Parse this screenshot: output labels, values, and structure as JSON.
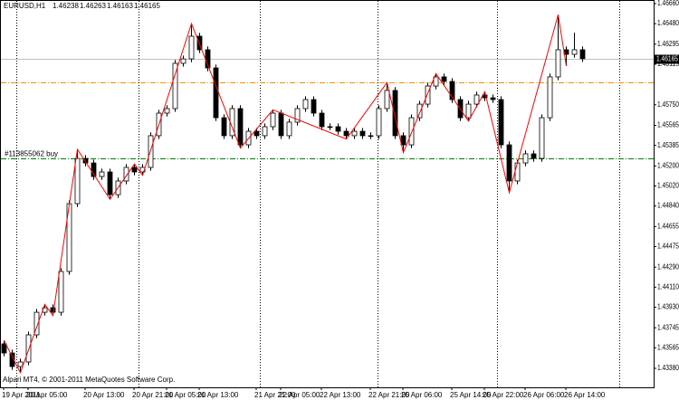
{
  "chart_data": {
    "type": "candlestick",
    "title": "EURUSD,H1",
    "header_values": [
      1.46238,
      1.46263,
      1.46163,
      1.46165
    ],
    "footer": "Alpari MT4, © 2001-2011 MetaQuotes Software Corp.",
    "categories": [
      "19 Apr 2011",
      null,
      null,
      "20 Apr 05:00",
      null,
      null,
      null,
      null,
      null,
      null,
      "20 Apr 13:00",
      null,
      null,
      null,
      null,
      null,
      "20 Apr 21:00",
      null,
      null,
      null,
      "21 Apr 05:00",
      null,
      null,
      null,
      "21 Apr 13:00",
      null,
      null,
      null,
      null,
      null,
      null,
      "21 Apr 21:00",
      null,
      null,
      "22 Apr 05:00",
      null,
      null,
      null,
      null,
      "22 Apr 13:00",
      null,
      null,
      null,
      null,
      null,
      "22 Apr 21:00",
      null,
      null,
      null,
      "25 Apr 06:00",
      null,
      null,
      null,
      null,
      null,
      "25 Apr 14:00",
      null,
      null,
      null,
      "25 Apr 22:00",
      null,
      null,
      null,
      null,
      "26 Apr 06:00",
      null,
      null,
      null,
      null,
      "26 Apr 14:00",
      null,
      null
    ],
    "open": [
      1.436,
      1.43518,
      1.43396,
      1.43437,
      1.43681,
      1.43884,
      1.43925,
      1.43884,
      1.44251,
      1.44861,
      1.45268,
      1.45227,
      1.45105,
      1.45146,
      1.44942,
      1.45065,
      1.45187,
      1.45146,
      1.45187,
      1.45472,
      1.45675,
      1.45716,
      1.46123,
      1.46163,
      1.46367,
      1.46245,
      1.46082,
      1.45634,
      1.45472,
      1.45716,
      1.4539,
      1.45512,
      1.45472,
      1.45553,
      1.45675,
      1.45472,
      1.45594,
      1.45716,
      1.45797,
      1.45675,
      1.45553,
      1.45553,
      1.45512,
      1.45472,
      1.45512,
      1.45472,
      1.45472,
      1.45716,
      1.45879,
      1.45472,
      1.4539,
      1.45634,
      1.45756,
      1.45919,
      1.46001,
      1.4596,
      1.45797,
      1.45634,
      1.45756,
      1.45838,
      1.45813,
      1.45797,
      1.4539,
      1.45065,
      1.45227,
      1.45309,
      1.45268,
      1.45634,
      1.46001,
      1.46245,
      1.46204,
      1.46245
    ],
    "high": [
      1.4363,
      1.43548,
      1.43467,
      1.43711,
      1.43914,
      1.43955,
      1.43955,
      1.44281,
      1.44891,
      1.4535,
      1.45298,
      1.45257,
      1.45176,
      1.45176,
      1.45095,
      1.45217,
      1.45217,
      1.45217,
      1.45502,
      1.45705,
      1.45746,
      1.46153,
      1.46193,
      1.4648,
      1.46397,
      1.46275,
      1.46112,
      1.45664,
      1.45746,
      1.45746,
      1.45542,
      1.45542,
      1.45583,
      1.45705,
      1.45705,
      1.45624,
      1.45746,
      1.45827,
      1.45827,
      1.45705,
      1.45583,
      1.45583,
      1.45542,
      1.45542,
      1.45542,
      1.45502,
      1.45746,
      1.4595,
      1.45909,
      1.45502,
      1.45664,
      1.45786,
      1.45949,
      1.46031,
      1.46031,
      1.4599,
      1.45827,
      1.45786,
      1.45868,
      1.45868,
      1.45843,
      1.45827,
      1.4542,
      1.45257,
      1.45339,
      1.45339,
      1.45664,
      1.46031,
      1.4656,
      1.46275,
      1.464,
      1.46275
    ],
    "low": [
      1.43488,
      1.43366,
      1.4334,
      1.43407,
      1.43651,
      1.43854,
      1.43854,
      1.43854,
      1.44221,
      1.44831,
      1.45197,
      1.45075,
      1.45075,
      1.449,
      1.44912,
      1.45035,
      1.45116,
      1.45116,
      1.45157,
      1.45442,
      1.45645,
      1.45686,
      1.46093,
      1.46133,
      1.46215,
      1.46052,
      1.45604,
      1.45442,
      1.45442,
      1.4536,
      1.4536,
      1.45442,
      1.45442,
      1.45523,
      1.45442,
      1.45442,
      1.45564,
      1.45686,
      1.45645,
      1.45523,
      1.45523,
      1.45482,
      1.45442,
      1.45442,
      1.45442,
      1.45442,
      1.45442,
      1.45686,
      1.45442,
      1.4532,
      1.4536,
      1.45604,
      1.45726,
      1.45889,
      1.4593,
      1.45767,
      1.45604,
      1.45604,
      1.45726,
      1.45783,
      1.45767,
      1.4536,
      1.4496,
      1.45035,
      1.45197,
      1.45238,
      1.45238,
      1.45604,
      1.45971,
      1.461,
      1.46174,
      1.46135
    ],
    "close": [
      1.43518,
      1.43396,
      1.43437,
      1.43681,
      1.43884,
      1.43925,
      1.43884,
      1.44251,
      1.44861,
      1.45268,
      1.45227,
      1.45105,
      1.45146,
      1.44942,
      1.45065,
      1.45187,
      1.45146,
      1.45187,
      1.45472,
      1.45675,
      1.45716,
      1.46123,
      1.46163,
      1.46367,
      1.46245,
      1.46082,
      1.45634,
      1.45472,
      1.45716,
      1.4539,
      1.45512,
      1.45472,
      1.45553,
      1.45675,
      1.45472,
      1.45594,
      1.45716,
      1.45797,
      1.45675,
      1.45553,
      1.45553,
      1.45512,
      1.45472,
      1.45512,
      1.45472,
      1.45472,
      1.45716,
      1.45879,
      1.45472,
      1.4539,
      1.45634,
      1.45756,
      1.45919,
      1.46001,
      1.4596,
      1.45797,
      1.45634,
      1.45756,
      1.45838,
      1.45813,
      1.45797,
      1.4539,
      1.45065,
      1.45227,
      1.45309,
      1.45268,
      1.45634,
      1.46001,
      1.46245,
      1.46204,
      1.46245,
      1.46165
    ],
    "zigzag": {
      "color": "#ff0000",
      "x": [
        0,
        2,
        5,
        6,
        9,
        13,
        16,
        17,
        23,
        29,
        33,
        42,
        47,
        49,
        53,
        57,
        59,
        62,
        68,
        69
      ],
      "values": [
        1.4363,
        1.4334,
        1.43955,
        1.43854,
        1.4535,
        1.449,
        1.45217,
        1.45116,
        1.4648,
        1.4536,
        1.45705,
        1.45442,
        1.4595,
        1.4532,
        1.46031,
        1.45604,
        1.45868,
        1.4496,
        1.4656,
        1.461
      ]
    },
    "price_line": {
      "value": 1.46165,
      "color": "#c0c0c0"
    },
    "levels": [
      {
        "label": "#113855062 buy",
        "value": 1.45268,
        "color": "#008000"
      },
      {
        "value": 1.45952,
        "color": "#ff8c00"
      }
    ],
    "ylim": [
      1.43209,
      1.4666
    ],
    "yticks": [
      {
        "value": 1.4666,
        "label": "1.46660"
      },
      {
        "value": 1.4648,
        "label": "1.46480"
      },
      1.46295,
      1.46115,
      {
        "value": 1.4575,
        "label": "1.45750"
      },
      1.45565,
      1.45385,
      {
        "value": 1.452,
        "label": "1.45200"
      },
      {
        "value": 1.4502,
        "label": "1.45020"
      },
      {
        "value": 1.4484,
        "label": "1.44840"
      },
      1.44655,
      1.44475,
      {
        "value": 1.4429,
        "label": "1.44290"
      },
      {
        "value": 1.4411,
        "label": "1.44110"
      },
      {
        "value": 1.4393,
        "label": "1.43930"
      },
      1.43745,
      1.43565,
      {
        "value": 1.4338,
        "label": "1.43380"
      }
    ]
  }
}
